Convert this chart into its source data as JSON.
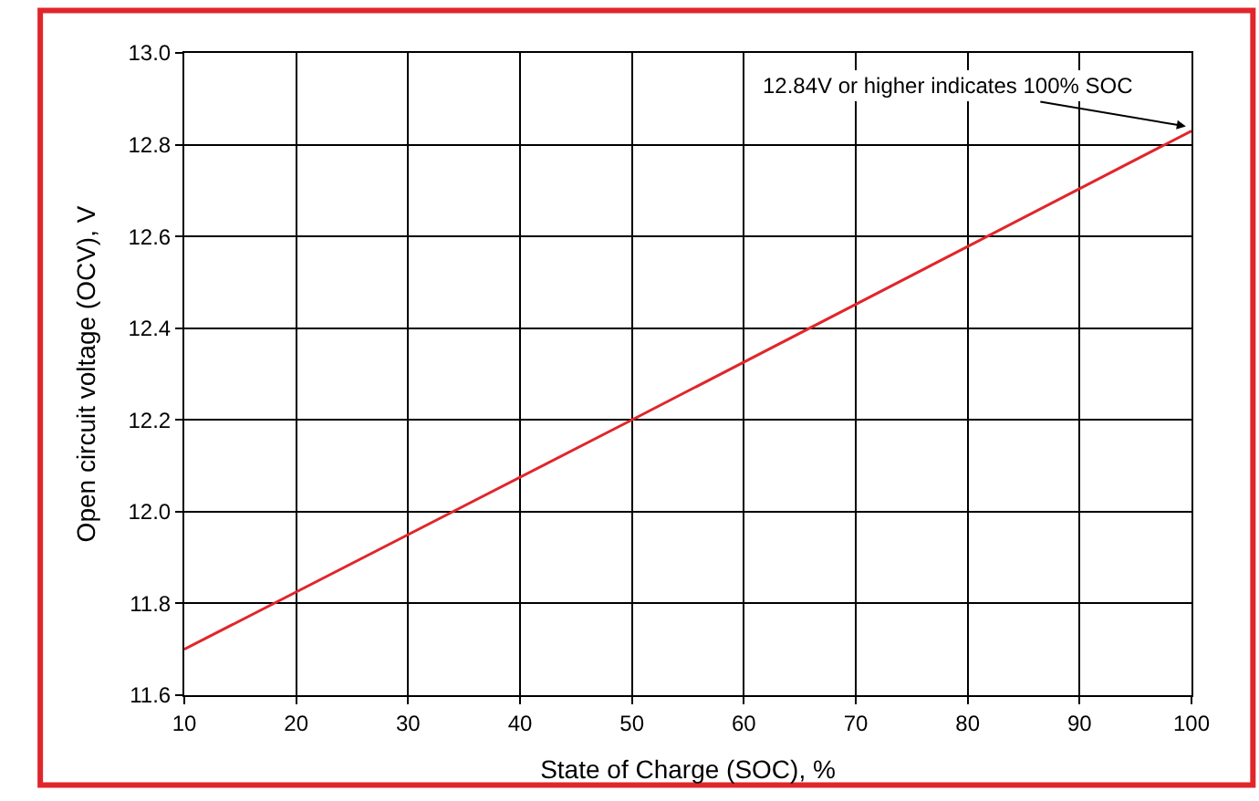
{
  "chart_data": {
    "type": "line",
    "xlabel": "State of Charge (SOC), %",
    "ylabel": "Open circuit voltage (OCV), V",
    "x": [
      10,
      50,
      100
    ],
    "series": [
      {
        "color": "#e0262b",
        "values": [
          11.7,
          12.2,
          12.83
        ]
      }
    ],
    "xlim": [
      10,
      100
    ],
    "xticks": [
      10,
      20,
      30,
      40,
      50,
      60,
      70,
      80,
      90,
      100
    ],
    "ylim": [
      11.6,
      13.0
    ],
    "yticks": [
      {
        "value": 11.6,
        "label": "11.6"
      },
      {
        "value": 11.8,
        "label": "11.8"
      },
      {
        "value": 12.0,
        "label": "12.0"
      },
      {
        "value": 12.2,
        "label": "12.2"
      },
      {
        "value": 12.4,
        "label": "12.4"
      },
      {
        "value": 12.6,
        "label": "12.6"
      },
      {
        "value": 12.8,
        "label": "12.8"
      },
      {
        "value": 13.0,
        "label": "13.0"
      }
    ],
    "grid": true,
    "marker": "none",
    "line_style": "solid",
    "annotations": [
      {
        "text": "12.84V or higher indicates 100% SOC",
        "x": 99.5,
        "y": 12.84
      }
    ]
  }
}
